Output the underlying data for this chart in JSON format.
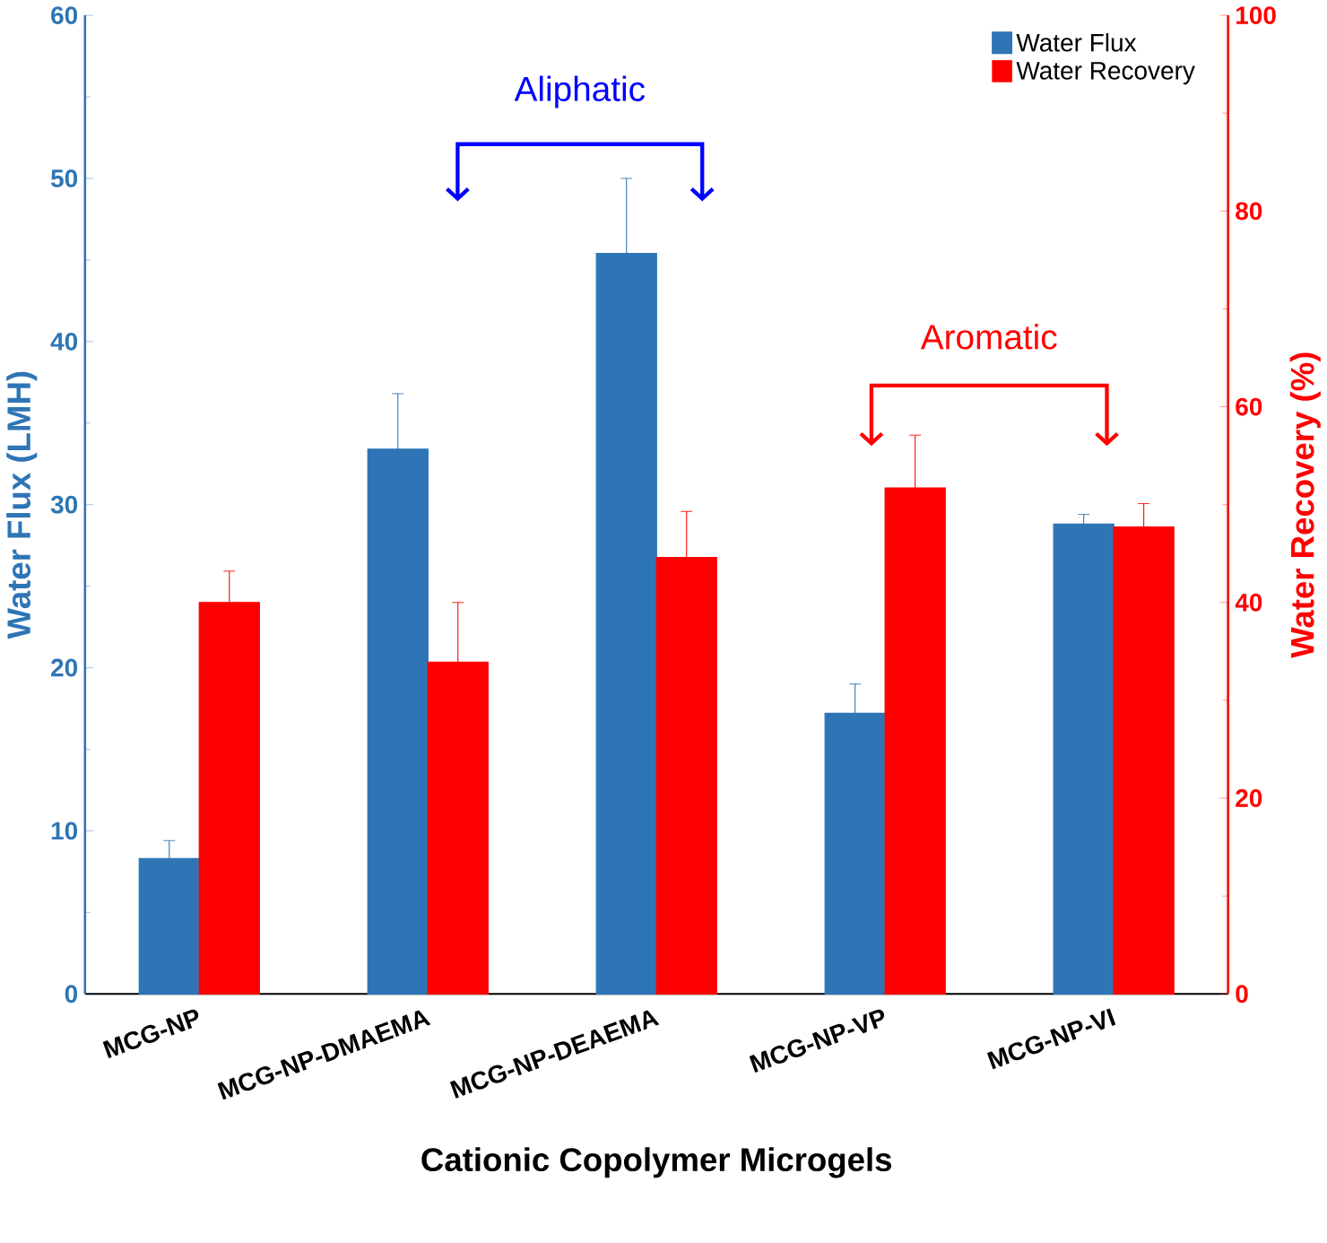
{
  "chart_data": {
    "type": "bar",
    "xlabel": "Cationic Copolymer Microgels",
    "ylabel": "Water Flux (LMH)",
    "y2label": "Water Recovery (%)",
    "categories": [
      "MCG-NP",
      "MCG-NP-DMAEMA",
      "MCG-NP-DEAEMA",
      "MCG-NP-VP",
      "MCG-NP-VI"
    ],
    "series": [
      {
        "name": "Water Flux",
        "color": "#2e75b6",
        "values": [
          8.3,
          33.4,
          45.4,
          17.2,
          28.8
        ],
        "errors": [
          1.1,
          3.4,
          4.6,
          1.8,
          0.6
        ]
      },
      {
        "name": "Water Recovery",
        "color": "#ff0000",
        "axis": "y2",
        "values": [
          40.0,
          33.9,
          44.6,
          51.7,
          47.7
        ],
        "errors": [
          3.2,
          6.1,
          4.7,
          5.4,
          2.4
        ]
      }
    ],
    "ylim": [
      0,
      60
    ],
    "yticks": [
      0,
      10,
      20,
      30,
      40,
      50,
      60
    ],
    "y2lim": [
      0,
      100
    ],
    "y2ticks": [
      0,
      20,
      40,
      60,
      80,
      100
    ],
    "annotations": [
      "Aliphatic",
      "Aromatic"
    ],
    "legend": "top right",
    "grid": false
  }
}
